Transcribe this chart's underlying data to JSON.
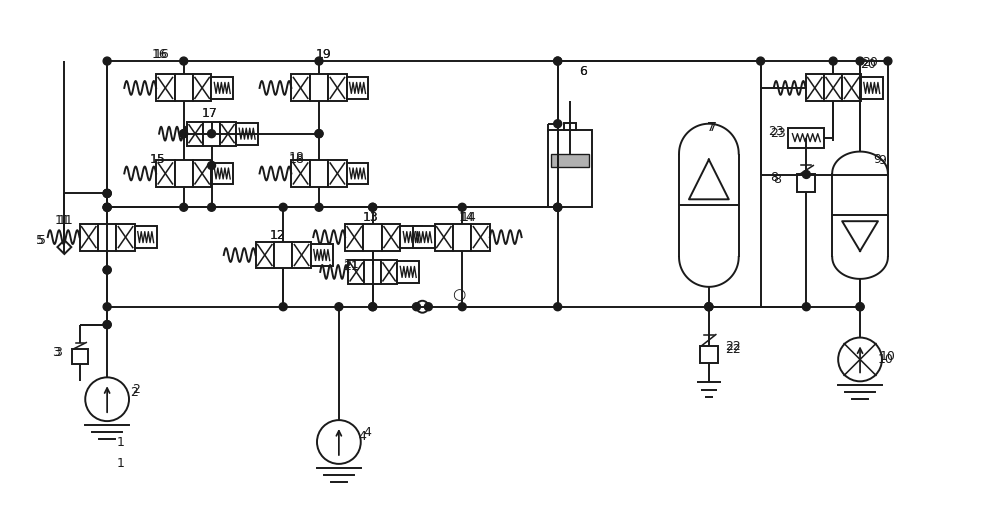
{
  "bg_color": "#ffffff",
  "line_color": "#1a1a1a",
  "lw": 1.4,
  "fig_w": 10.0,
  "fig_h": 5.15,
  "dpi": 100
}
